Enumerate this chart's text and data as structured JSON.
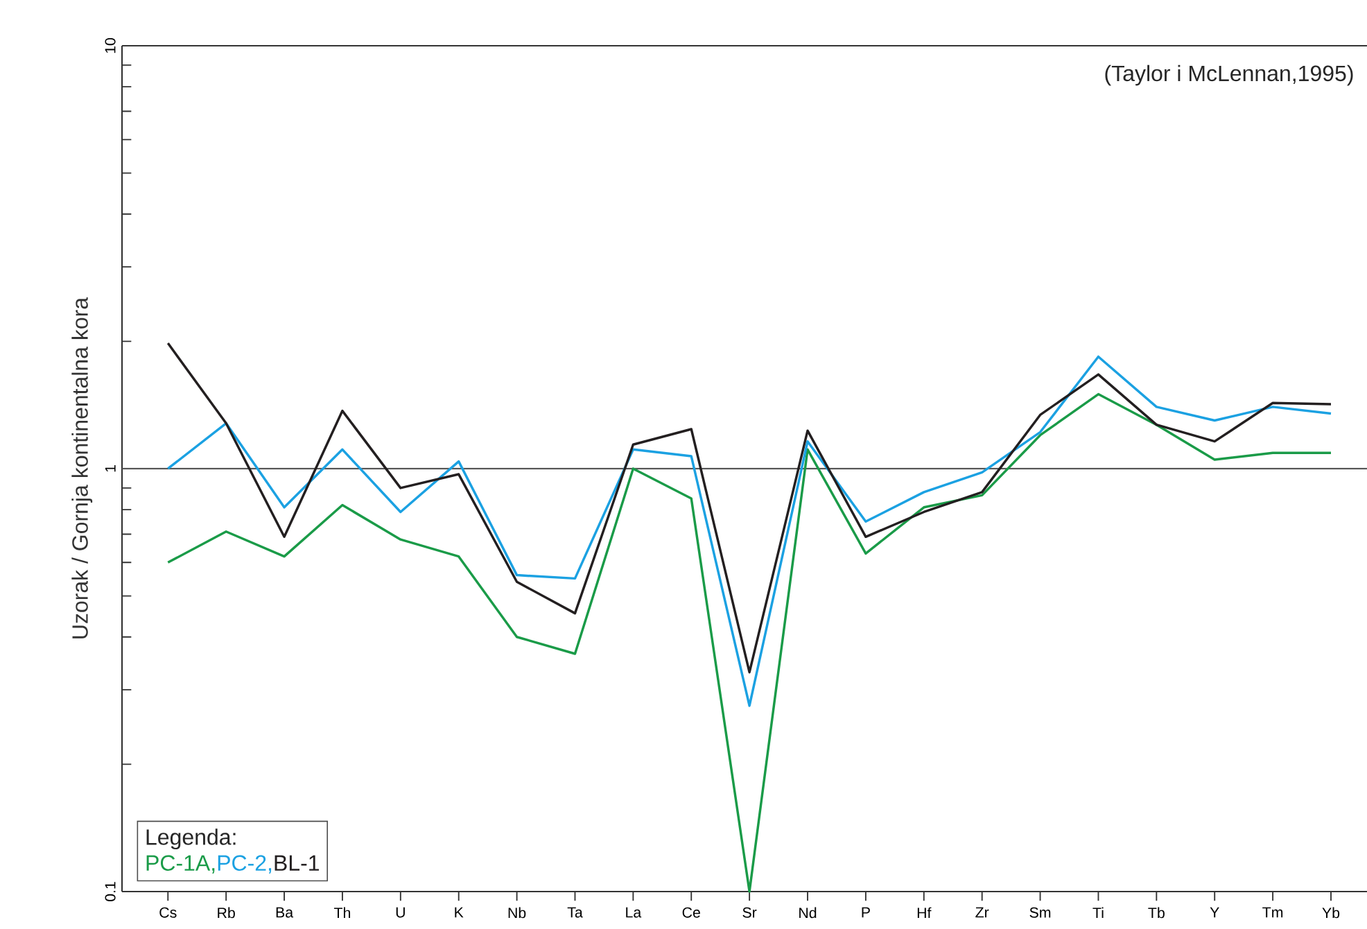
{
  "chart_data": {
    "type": "line",
    "ylabel": "Uzorak / Gornja kontinentalna kora",
    "log": "y",
    "categories": [
      "Cs",
      "Rb",
      "Ba",
      "Th",
      "U",
      "K",
      "Nb",
      "Ta",
      "La",
      "Ce",
      "Sr",
      "Nd",
      "P",
      "Hf",
      "Zr",
      "Sm",
      "Ti",
      "Tb",
      "Y",
      "Tm",
      "Yb"
    ],
    "series": [
      {
        "name": "PC-1A,",
        "color": "#1a9b48",
        "values": [
          0.6,
          0.71,
          0.62,
          0.82,
          0.68,
          0.62,
          0.4,
          0.365,
          1.0,
          0.85,
          0.1,
          1.11,
          0.63,
          0.81,
          0.865,
          1.2,
          1.5,
          1.27,
          1.05,
          1.09,
          1.09
        ]
      },
      {
        "name": "PC-2,",
        "color": "#1ba1e2",
        "values": [
          1.0,
          1.28,
          0.81,
          1.11,
          0.79,
          1.04,
          0.56,
          0.55,
          1.11,
          1.07,
          0.275,
          1.16,
          0.75,
          0.88,
          0.98,
          1.22,
          1.84,
          1.4,
          1.3,
          1.4,
          1.35
        ]
      },
      {
        "name": "BL-1",
        "color": "#231f20",
        "values": [
          1.98,
          1.28,
          0.69,
          1.37,
          0.9,
          0.97,
          0.54,
          0.455,
          1.14,
          1.24,
          0.33,
          1.23,
          0.69,
          0.79,
          0.88,
          1.34,
          1.67,
          1.27,
          1.16,
          1.43,
          1.42
        ]
      }
    ],
    "ylim": [
      0.1,
      10
    ],
    "yticks": [
      0.1,
      1,
      10
    ],
    "ref_lines": [
      {
        "axis": "y",
        "value": 1,
        "color": "#555555"
      }
    ],
    "legend_title": "Legenda:",
    "annotations": [
      "(Taylor i McLennan,1995)"
    ]
  }
}
